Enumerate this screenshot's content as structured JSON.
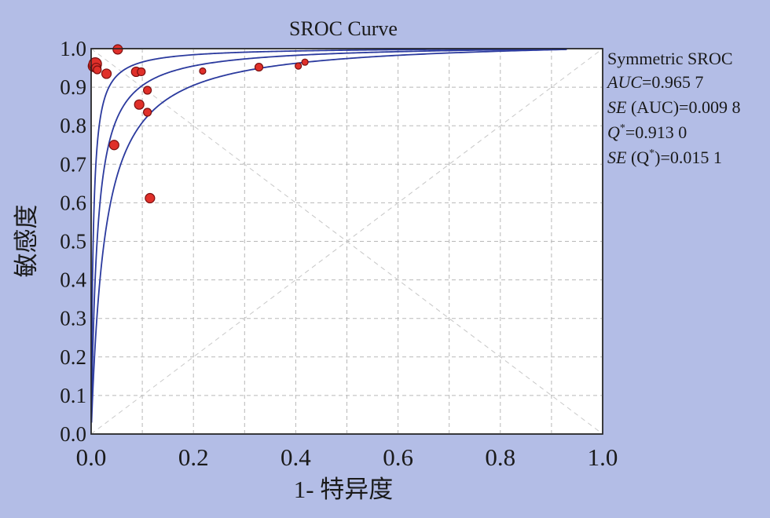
{
  "colors": {
    "background": "#b3bde6",
    "plot_area": "#ffffff",
    "curve": "#2b3a9e",
    "point": "#e0302a",
    "point_edge": "#7a1010",
    "grid": "#b8b8b8",
    "diagonal": "#c8c8c8"
  },
  "chart_data": {
    "type": "scatter",
    "title": "SROC Curve",
    "xlabel": "1- 特异度",
    "ylabel": "敏感度",
    "xlim": [
      0,
      1
    ],
    "ylim": [
      0,
      1
    ],
    "x_ticks": [
      "0.0",
      "0.2",
      "0.4",
      "0.6",
      "0.8",
      "1.0"
    ],
    "y_ticks": [
      "0.0",
      "0.1",
      "0.2",
      "0.3",
      "0.4",
      "0.5",
      "0.6",
      "0.7",
      "0.8",
      "0.9",
      "1.0"
    ],
    "grid": true,
    "legend_placement": "right",
    "legend": {
      "line1": "Symmetric SROC",
      "auc_label": "AUC",
      "auc_value": "=0.965 7",
      "se_auc_label": "SE",
      "se_auc_value": " (AUC)=0.009 8",
      "q_label": "Q",
      "q_sup": "*",
      "q_value": "=0.913 0",
      "se_q_label": "SE",
      "se_q_open": " (Q",
      "se_q_sup": "*",
      "se_q_value": ")=0.015 1"
    },
    "curves": [
      {
        "dor": 250,
        "x_max": 0.93
      },
      {
        "dor": 85,
        "x_max": 0.93
      },
      {
        "dor": 38,
        "x_max": 0.93
      }
    ],
    "points": [
      {
        "x": 0.005,
        "y": 0.955,
        "size": 7
      },
      {
        "x": 0.008,
        "y": 0.96,
        "size": 8
      },
      {
        "x": 0.01,
        "y": 0.95,
        "size": 6
      },
      {
        "x": 0.012,
        "y": 0.945,
        "size": 5
      },
      {
        "x": 0.03,
        "y": 0.935,
        "size": 6
      },
      {
        "x": 0.052,
        "y": 0.998,
        "size": 6
      },
      {
        "x": 0.045,
        "y": 0.75,
        "size": 6
      },
      {
        "x": 0.088,
        "y": 0.94,
        "size": 6
      },
      {
        "x": 0.098,
        "y": 0.94,
        "size": 5
      },
      {
        "x": 0.11,
        "y": 0.892,
        "size": 5
      },
      {
        "x": 0.094,
        "y": 0.855,
        "size": 6
      },
      {
        "x": 0.11,
        "y": 0.835,
        "size": 5
      },
      {
        "x": 0.115,
        "y": 0.612,
        "size": 6
      },
      {
        "x": 0.218,
        "y": 0.942,
        "size": 4
      },
      {
        "x": 0.328,
        "y": 0.952,
        "size": 5
      },
      {
        "x": 0.405,
        "y": 0.955,
        "size": 4
      },
      {
        "x": 0.418,
        "y": 0.965,
        "size": 4
      }
    ]
  }
}
